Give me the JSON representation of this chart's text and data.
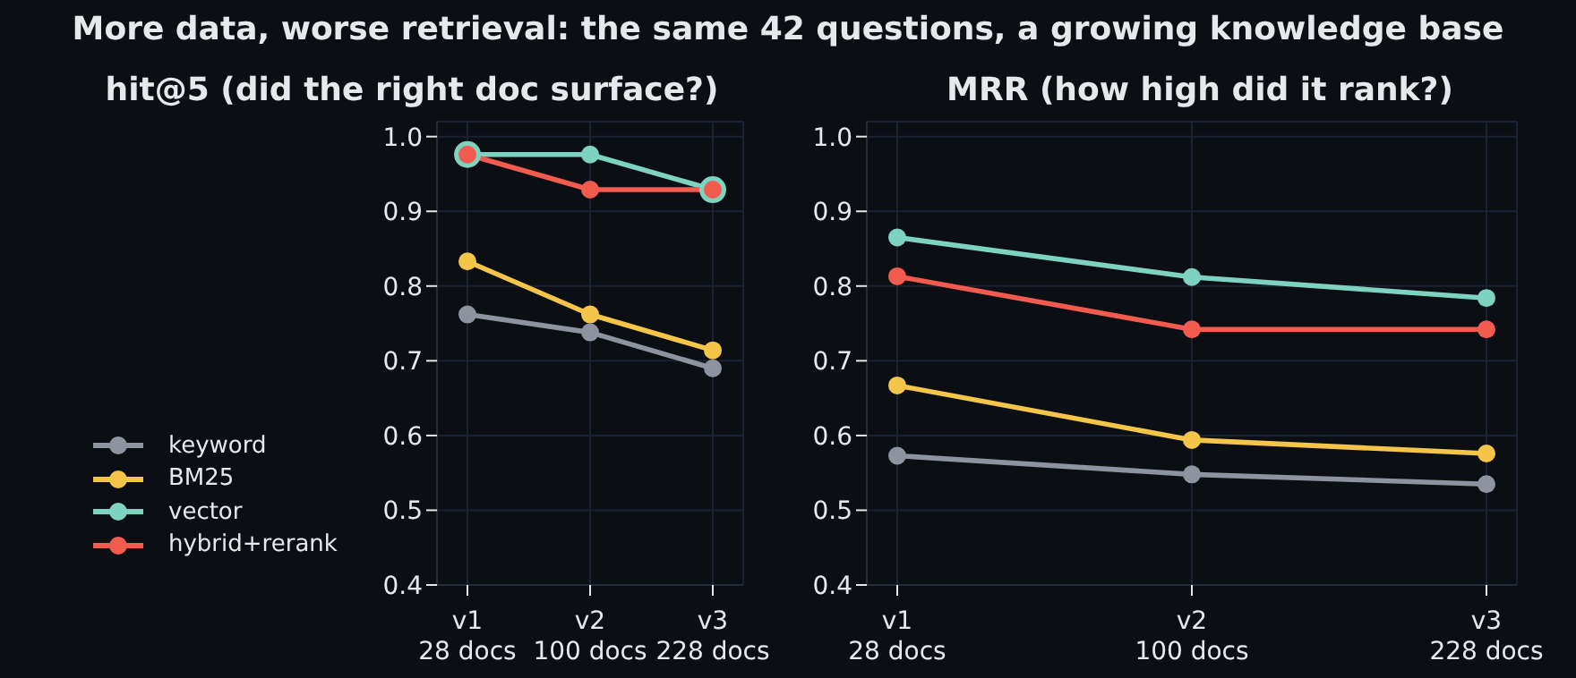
{
  "chart_data": [
    {
      "type": "line",
      "title": "hit@5  (did the right doc surface?)",
      "annotations": [
        "More data, worse retrieval: the same 42 questions, a growing knowledge base"
      ],
      "categories": [
        "v1\n28 docs",
        "v2\n100 docs",
        "v3\n228 docs"
      ],
      "series": [
        {
          "name": "keyword",
          "color": "#8e949f",
          "values": [
            0.762,
            0.738,
            0.69
          ]
        },
        {
          "name": "BM25",
          "color": "#f5c54a",
          "values": [
            0.833,
            0.762,
            0.714
          ]
        },
        {
          "name": "vector",
          "color": "#7dd3c0",
          "values": [
            0.976,
            0.976,
            0.929
          ]
        },
        {
          "name": "hybrid+rerank",
          "color": "#f25c4f",
          "values": [
            0.976,
            0.929,
            0.929
          ]
        }
      ],
      "ylim": [
        0.4,
        1.02
      ],
      "yticks": [
        0.4,
        0.5,
        0.6,
        0.7,
        0.8,
        0.9,
        {
          "value": 1.0,
          "label": "1.0"
        }
      ],
      "grid": true,
      "legend": "bottom left",
      "marker": "circle",
      "line_style": "solid"
    },
    {
      "type": "line",
      "title": "MRR  (how high did it rank?)",
      "categories": [
        "v1\n28 docs",
        "v2\n100 docs",
        "v3\n228 docs"
      ],
      "series": [
        {
          "color": "#8e949f",
          "values": [
            0.573,
            0.548,
            0.535
          ]
        },
        {
          "color": "#f5c54a",
          "values": [
            0.667,
            0.594,
            0.576
          ]
        },
        {
          "color": "#7dd3c0",
          "values": [
            0.865,
            0.812,
            0.784
          ]
        },
        {
          "color": "#f25c4f",
          "values": [
            0.813,
            0.742,
            0.742
          ]
        }
      ],
      "ylim": [
        0.4,
        1.02
      ],
      "yticks": [
        0.4,
        0.5,
        0.6,
        0.7,
        0.8,
        0.9,
        {
          "value": 1.0,
          "label": "1.0"
        }
      ],
      "grid": true,
      "marker": "circle",
      "line_style": "solid"
    }
  ]
}
